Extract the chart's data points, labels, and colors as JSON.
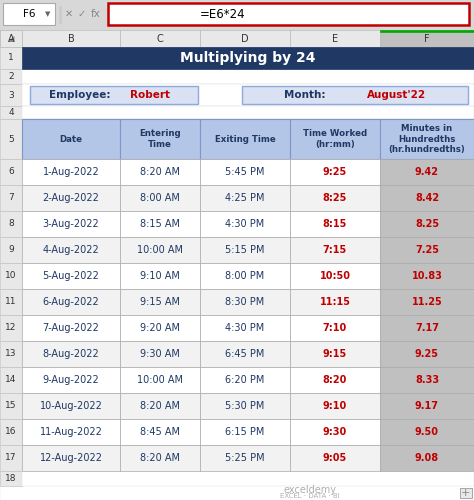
{
  "title": "Multiplying by 24",
  "title_bg": "#1F3864",
  "title_color": "#FFFFFF",
  "formula_bar_text": "=E6*24",
  "cell_ref": "F6",
  "employee_label": "Employee: ",
  "employee_name": "Robert",
  "month_label": "Month: ",
  "month_name": "August'22",
  "col_headers": [
    "Date",
    "Entering\nTime",
    "Exiting Time",
    "Time Worked\n(hr:mm)",
    "Minutes in\nHundredths\n(hr.hundredths)"
  ],
  "col_labels": [
    "A",
    "B",
    "C",
    "D",
    "E",
    "F"
  ],
  "row_labels": [
    "1",
    "2",
    "3",
    "4",
    "5",
    "6",
    "7",
    "8",
    "9",
    "10",
    "11",
    "12",
    "13",
    "14",
    "15",
    "16",
    "17",
    "18"
  ],
  "rows": [
    [
      "1-Aug-2022",
      "8:20 AM",
      "5:45 PM",
      "9:25",
      "9.42"
    ],
    [
      "2-Aug-2022",
      "8:00 AM",
      "4:25 PM",
      "8:25",
      "8.42"
    ],
    [
      "3-Aug-2022",
      "8:15 AM",
      "4:30 PM",
      "8:15",
      "8.25"
    ],
    [
      "4-Aug-2022",
      "10:00 AM",
      "5:15 PM",
      "7:15",
      "7.25"
    ],
    [
      "5-Aug-2022",
      "9:10 AM",
      "8:00 PM",
      "10:50",
      "10.83"
    ],
    [
      "6-Aug-2022",
      "9:15 AM",
      "8:30 PM",
      "11:15",
      "11.25"
    ],
    [
      "7-Aug-2022",
      "9:20 AM",
      "4:30 PM",
      "7:10",
      "7.17"
    ],
    [
      "8-Aug-2022",
      "9:30 AM",
      "6:45 PM",
      "9:15",
      "9.25"
    ],
    [
      "9-Aug-2022",
      "10:00 AM",
      "6:20 PM",
      "8:20",
      "8.33"
    ],
    [
      "10-Aug-2022",
      "8:20 AM",
      "5:30 PM",
      "9:10",
      "9.17"
    ],
    [
      "11-Aug-2022",
      "8:45 AM",
      "6:15 PM",
      "9:30",
      "9.50"
    ],
    [
      "12-Aug-2022",
      "8:20 AM",
      "5:25 PM",
      "9:05",
      "9.08"
    ]
  ],
  "date_col_color": "#1F3864",
  "time_col_color": "#1F3864",
  "time_worked_color": "#C00000",
  "hundredths_color": "#C00000",
  "col_header_bg": "#B4C6E7",
  "col_header_text": "#1F3864",
  "last_col_bg": "#C0C0C0",
  "last_col_selected_bg": "#C0C0C0",
  "row_bg_white": "#FFFFFF",
  "row_bg_light": "#F2F2F2",
  "grid_color": "#AAAAAA",
  "formula_box_border": "#C00000",
  "spreadsheet_bg": "#FFFFFF",
  "outer_bg": "#D8D8D8",
  "col_header_bar_bg": "#E8E8E8",
  "row_header_bar_bg": "#E8E8E8",
  "selected_col_header_bg": "#C0C0C0",
  "info_box_bg": "#D9E1F2",
  "info_box_border": "#8EA9DB",
  "table_border_color": "#7F96C6",
  "watermark_color": "#B0B0B0",
  "formula_bar_border": "#C00000"
}
